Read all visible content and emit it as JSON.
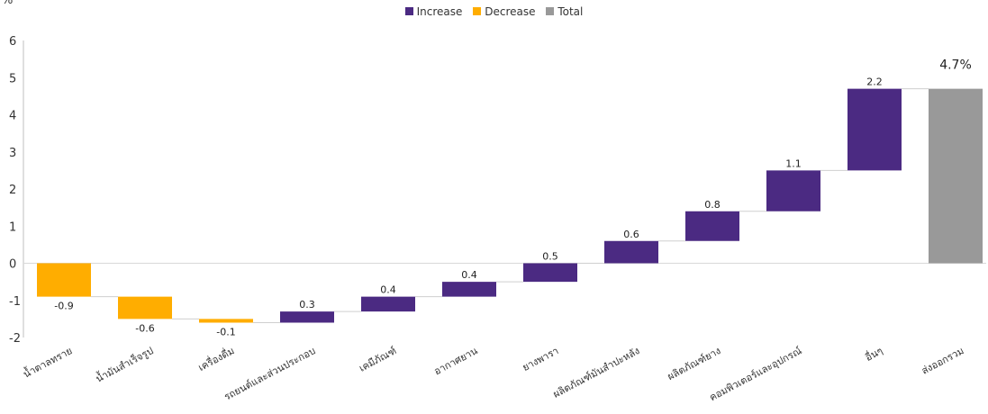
{
  "chart_data": {
    "type": "bar",
    "subtype": "waterfall",
    "unit_label": "%",
    "ylim": [
      -2,
      6
    ],
    "yticks": [
      "6",
      "5",
      "4",
      "3",
      "2",
      "1",
      "0",
      "-1",
      "-2"
    ],
    "grid": false,
    "legend": {
      "placement": "top-center",
      "items": [
        {
          "label": "Increase",
          "color": "#4b2a82"
        },
        {
          "label": "Decrease",
          "color": "#ffad00"
        },
        {
          "label": "Total",
          "color": "#999999"
        }
      ]
    },
    "categories": [
      "น้ำตาลทราย",
      "น้ำมันสำเร็จรูป",
      "เครื่องดื่ม",
      "รถยนต์และส่วนประกอบ",
      "เคมีภัณฑ์",
      "อากาศยาน",
      "ยางพารา",
      "ผลิตภัณฑ์มันสำปะหลัง",
      "ผลิตภัณฑ์ยาง",
      "คอมพิวเตอร์และอุปกรณ์",
      "อื่นๆ",
      "ส่งออกรวม"
    ],
    "values": [
      -0.9,
      -0.6,
      -0.1,
      0.3,
      0.4,
      0.4,
      0.5,
      0.6,
      0.8,
      1.1,
      2.2,
      4.7
    ],
    "value_labels": [
      "-0.9",
      "-0.6",
      "-0.1",
      "0.3",
      "0.4",
      "0.4",
      "0.5",
      "0.6",
      "0.8",
      "1.1",
      "2.2",
      "4.7%"
    ],
    "kinds": [
      "decrease",
      "decrease",
      "decrease",
      "increase",
      "increase",
      "increase",
      "increase",
      "increase",
      "increase",
      "increase",
      "increase",
      "total"
    ]
  }
}
